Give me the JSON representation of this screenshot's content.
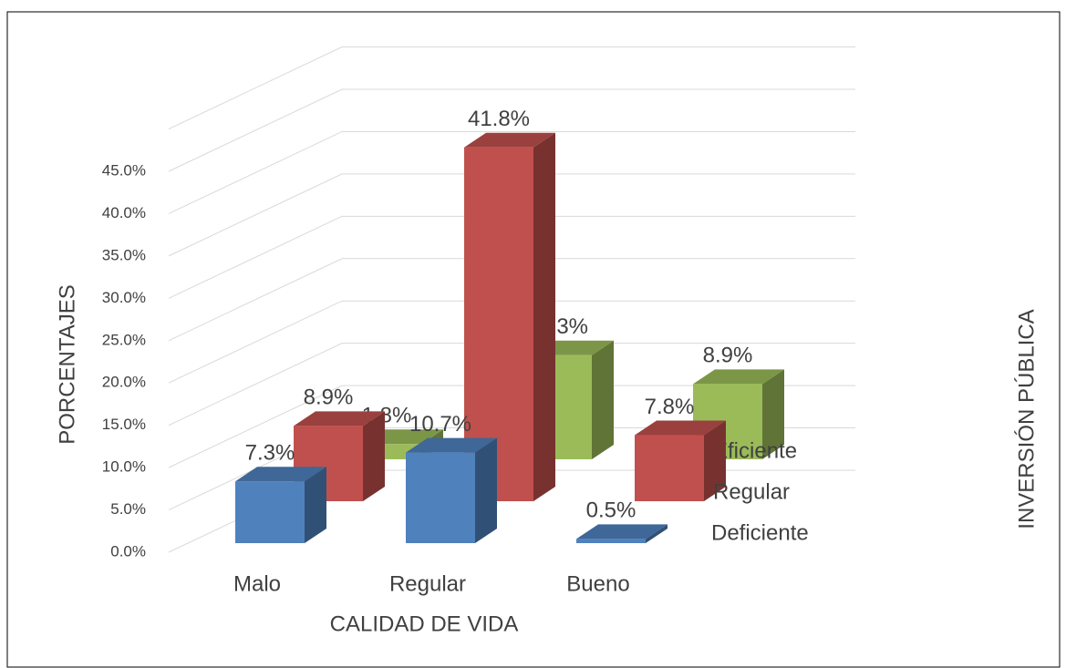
{
  "chart_data": {
    "type": "bar3d",
    "y_label": "PORCENTAJES",
    "x_label": "CALIDAD DE VIDA",
    "depth_label": "INVERSIÓN PÚBLICA",
    "categories": [
      "Malo",
      "Regular",
      "Bueno"
    ],
    "series": [
      {
        "name": "Deficiente",
        "color": "#4f81bd",
        "values": [
          7.3,
          10.7,
          0.5
        ],
        "value_labels": [
          "7.3%",
          "10.7%",
          "0.5%"
        ]
      },
      {
        "name": "Regular",
        "color": "#c0504d",
        "values": [
          8.9,
          41.8,
          7.8
        ],
        "value_labels": [
          "8.9%",
          "41.8%",
          "7.8%"
        ]
      },
      {
        "name": "Eficiente",
        "color": "#9bbb59",
        "values": [
          1.8,
          12.3,
          8.9
        ],
        "value_labels": [
          "1.8%",
          "12.3%",
          "8.9%"
        ]
      }
    ],
    "ylim": [
      0,
      50
    ],
    "yticks": [
      {
        "value": 0,
        "label": "0.0%"
      },
      {
        "value": 5,
        "label": "5.0%"
      },
      {
        "value": 10,
        "label": "10.0%"
      },
      {
        "value": 15,
        "label": "15.0%"
      },
      {
        "value": 20,
        "label": "20.0%"
      },
      {
        "value": 25,
        "label": "25.0%"
      },
      {
        "value": 30,
        "label": "30.0%"
      },
      {
        "value": 35,
        "label": "35.0%"
      },
      {
        "value": 40,
        "label": "40.0%"
      },
      {
        "value": 45,
        "label": "45.0%"
      }
    ],
    "grid": true
  }
}
